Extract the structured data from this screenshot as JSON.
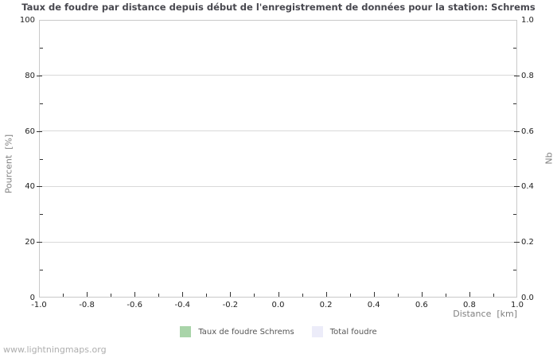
{
  "page": {
    "watermark": "www.lightningmaps.org"
  },
  "chart_data": {
    "type": "bar",
    "title": "Taux de foudre par distance depuis début de l'enregistrement de données pour la station: Schrems",
    "xlabel": "Distance  [km]",
    "ylabel": "Pourcent  [%]",
    "ylabel_right": "Nb",
    "xlim": [
      -1.0,
      1.0
    ],
    "ylim": [
      0,
      100
    ],
    "ylim_right": [
      0.0,
      1.0
    ],
    "x_ticks": [
      -1.0,
      -0.8,
      -0.6,
      -0.4,
      -0.2,
      0.0,
      0.2,
      0.4,
      0.6,
      0.8,
      1.0
    ],
    "x_tick_labels": [
      "-1.0",
      "-0.8",
      "-0.6",
      "-0.4",
      "-0.2",
      "0.0",
      "0.2",
      "0.4",
      "0.6",
      "0.8",
      "1.0"
    ],
    "y_ticks": [
      0,
      20,
      40,
      60,
      80,
      100
    ],
    "y_tick_labels": [
      "0",
      "20",
      "40",
      "60",
      "80",
      "100"
    ],
    "y2_ticks": [
      0.0,
      0.2,
      0.4,
      0.6,
      0.8,
      1.0
    ],
    "y2_tick_labels": [
      "0.0",
      "0.2",
      "0.4",
      "0.6",
      "0.8",
      "1.0"
    ],
    "grid": "horizontal-only",
    "legend_position": "bottom-center",
    "series": [
      {
        "name": "Taux de foudre Schrems",
        "type": "bar",
        "color": "#a9d4a9",
        "values": []
      },
      {
        "name": "Total foudre",
        "type": "bar",
        "color": "#ececf9",
        "values": []
      }
    ]
  },
  "colors": {
    "grid": "#d9d9d9",
    "plot_border": "#c9c9c9",
    "tick_mark": "#333333",
    "tick_text": "#222222",
    "axis_label_text": "#808080",
    "title_text": "#48484f",
    "legend_text": "#555555",
    "watermark_text": "#aeaeae",
    "background": "#ffffff"
  }
}
